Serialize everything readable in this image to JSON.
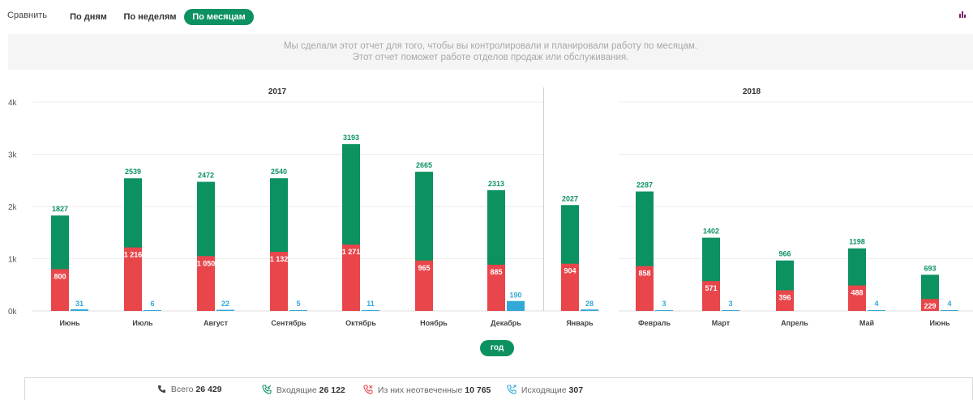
{
  "toolbar": {
    "compare_label": "Сравнить",
    "tabs": [
      {
        "label": "По дням",
        "active": false
      },
      {
        "label": "По неделям",
        "active": false
      },
      {
        "label": "По месяцам",
        "active": true
      }
    ],
    "menu_icon": "bar-chart-icon"
  },
  "info": {
    "line1": "Мы сделали этот отчет для того, чтобы вы контролировали и планировали работу по месяцам.",
    "line2": "Этот отчет поможет работе отделов продаж или обслуживания."
  },
  "colors": {
    "total": "#0c9160",
    "missed": "#e8464b",
    "outgoing": "#32a9d8",
    "accent": "#0c9160"
  },
  "chart_data": {
    "type": "bar",
    "groups": [
      {
        "label": "2017",
        "categories": [
          "Июнь",
          "Июль",
          "Август",
          "Сентябрь",
          "Октябрь",
          "Ноябрь",
          "Декабрь"
        ]
      },
      {
        "label": "",
        "categories": [
          "Январь"
        ]
      },
      {
        "label": "2018",
        "categories": [
          "Февраль",
          "Март",
          "Апрель",
          "Май",
          "Июнь"
        ]
      }
    ],
    "categories": [
      "Июнь",
      "Июль",
      "Август",
      "Сентябрь",
      "Октябрь",
      "Ноябрь",
      "Декабрь",
      "Январь",
      "Февраль",
      "Март",
      "Апрель",
      "Май",
      "Июнь"
    ],
    "series": [
      {
        "key": "total",
        "values": [
          1827,
          2539,
          2472,
          2540,
          3193,
          2665,
          2313,
          2027,
          2287,
          1402,
          966,
          1198,
          693
        ],
        "labels": [
          "1827",
          "2539",
          "2472",
          "2540",
          "3193",
          "2665",
          "2313",
          "2027",
          "2287",
          "1402",
          "966",
          "1198",
          "693"
        ]
      },
      {
        "key": "missed",
        "values": [
          800,
          1216,
          1050,
          1132,
          1271,
          965,
          885,
          904,
          858,
          571,
          396,
          488,
          229
        ],
        "labels": [
          "800",
          "1 216",
          "1 050",
          "1 132",
          "1 271",
          "965",
          "885",
          "904",
          "858",
          "571",
          "396",
          "488",
          "229"
        ]
      },
      {
        "key": "outgoing",
        "values": [
          31,
          6,
          22,
          5,
          11,
          null,
          190,
          28,
          3,
          3,
          null,
          4,
          4
        ],
        "labels": [
          "31",
          "6",
          "22",
          "5",
          "11",
          "",
          "190",
          "28",
          "3",
          "3",
          "",
          "4",
          "4"
        ]
      }
    ],
    "ylim": [
      0,
      4000
    ],
    "yticks": [
      {
        "value": 0,
        "label": "0k"
      },
      {
        "value": 1000,
        "label": "1k"
      },
      {
        "value": 2000,
        "label": "2k"
      },
      {
        "value": 3000,
        "label": "3k"
      },
      {
        "value": 4000,
        "label": "4k"
      }
    ],
    "grid": true
  },
  "period_button": "год",
  "stats": [
    {
      "icon": "phone-icon",
      "label": "Всего",
      "value": "26 429"
    },
    {
      "icon": "incoming-call-icon",
      "label": "Входящие",
      "value": "26 122"
    },
    {
      "icon": "missed-call-icon",
      "label": "Из них неотвеченные",
      "value": "10 765"
    },
    {
      "icon": "outgoing-call-icon",
      "label": "Исходящие",
      "value": "307"
    }
  ]
}
